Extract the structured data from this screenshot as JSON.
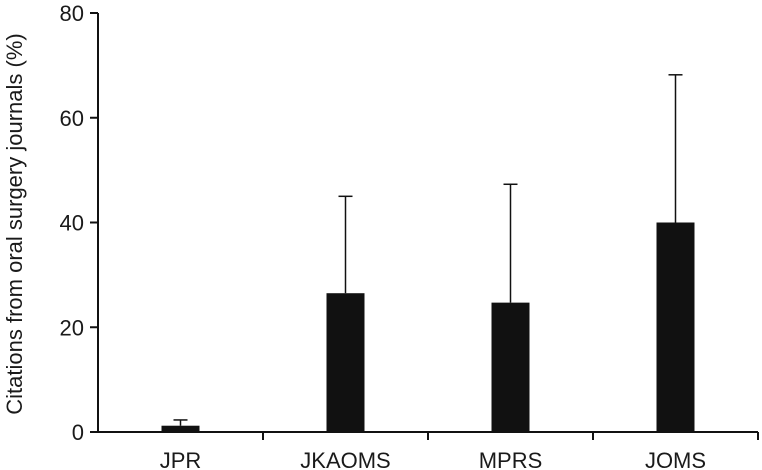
{
  "chart_data": {
    "type": "bar",
    "title": "",
    "xlabel": "",
    "ylabel": "Citations from oral surgery journals (%)",
    "ylim": [
      0,
      80
    ],
    "yticks": [
      0,
      20,
      40,
      60,
      80
    ],
    "grid": false,
    "bar_color": "#111111",
    "categories": [
      "JPR",
      "JKAOMS",
      "MPRS",
      "JOMS"
    ],
    "values": [
      1.2,
      26.5,
      24.7,
      40.0
    ],
    "errors": [
      1.1,
      18.5,
      22.6,
      28.2
    ]
  }
}
